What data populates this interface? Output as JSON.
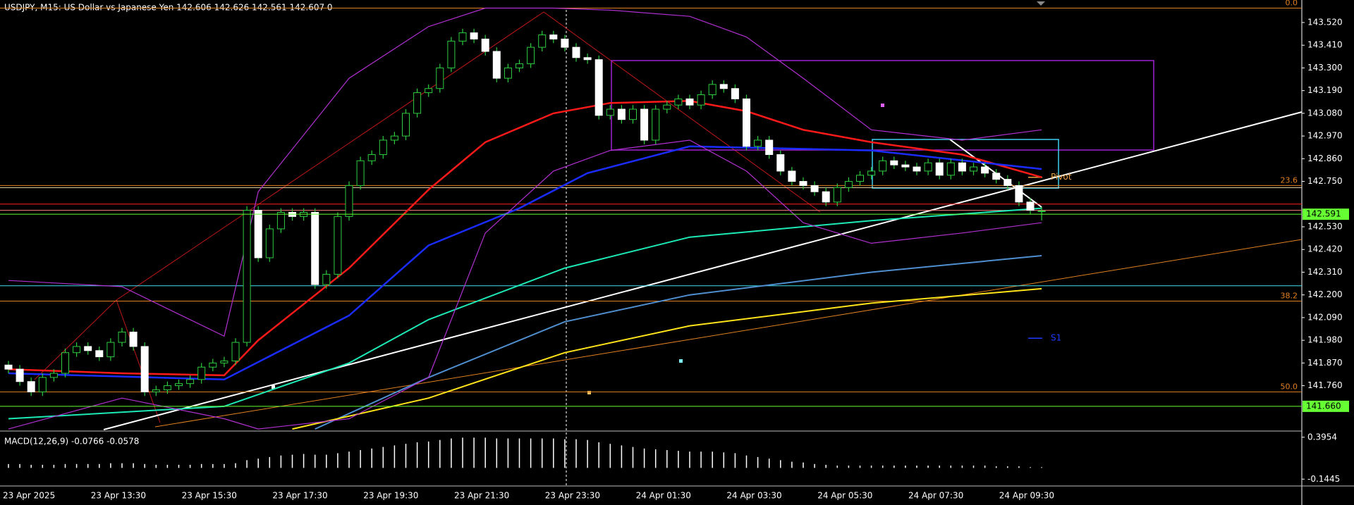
{
  "header": {
    "symbol_text": "USDJPY, M15:  US Dollar vs Japanese Yen  142.606 142.626 142.561 142.607  0"
  },
  "chart_data": [
    {
      "type": "candlestick",
      "categories": [
        "23 Apr 2025",
        null,
        null,
        null,
        null,
        null,
        null,
        null,
        "23 Apr 13:30",
        null,
        null,
        null,
        null,
        null,
        null,
        null,
        "23 Apr 15:30",
        null,
        null,
        null,
        null,
        null,
        null,
        null,
        "23 Apr 17:30",
        null,
        null,
        null,
        null,
        null,
        null,
        null,
        "23 Apr 19:30",
        null,
        null,
        null,
        null,
        null,
        null,
        null,
        "23 Apr 21:30",
        null,
        null,
        null,
        null,
        null,
        null,
        null,
        "23 Apr 23:30",
        null,
        null,
        null,
        null,
        null,
        null,
        null,
        "24 Apr 01:30",
        null,
        null,
        null,
        null,
        null,
        null,
        null,
        "24 Apr 03:30",
        null,
        null,
        null,
        null,
        null,
        null,
        null,
        "24 Apr 05:30",
        null,
        null,
        null,
        null,
        null,
        null,
        null,
        "24 Apr 07:30",
        null,
        null,
        null,
        null,
        null,
        null,
        null,
        "24 Apr 09:30",
        null,
        null,
        null
      ],
      "ohlc": [
        [
          141.86,
          141.88,
          141.82,
          141.84
        ],
        [
          141.84,
          141.86,
          141.76,
          141.78
        ],
        [
          141.78,
          141.8,
          141.71,
          141.73
        ],
        [
          141.73,
          141.82,
          141.71,
          141.8
        ],
        [
          141.8,
          141.84,
          141.78,
          141.82
        ],
        [
          141.82,
          141.94,
          141.8,
          141.92
        ],
        [
          141.92,
          141.97,
          141.9,
          141.95
        ],
        [
          141.95,
          141.97,
          141.91,
          141.93
        ],
        [
          141.93,
          141.95,
          141.88,
          141.9
        ],
        [
          141.9,
          141.99,
          141.88,
          141.97
        ],
        [
          141.97,
          142.04,
          141.95,
          142.02
        ],
        [
          142.02,
          142.04,
          141.93,
          141.95
        ],
        [
          141.95,
          141.97,
          141.71,
          141.73
        ],
        [
          141.73,
          141.76,
          141.71,
          141.74
        ],
        [
          141.74,
          141.78,
          141.72,
          141.76
        ],
        [
          141.76,
          141.79,
          141.74,
          141.77
        ],
        [
          141.77,
          141.81,
          141.75,
          141.79
        ],
        [
          141.79,
          141.87,
          141.77,
          141.85
        ],
        [
          141.85,
          141.89,
          141.83,
          141.87
        ],
        [
          141.87,
          141.9,
          141.85,
          141.88
        ],
        [
          141.88,
          141.99,
          141.86,
          141.97
        ],
        [
          141.97,
          142.63,
          141.95,
          142.61
        ],
        [
          142.61,
          142.63,
          142.36,
          142.38
        ],
        [
          142.38,
          142.54,
          142.36,
          142.52
        ],
        [
          142.52,
          142.62,
          142.5,
          142.6
        ],
        [
          142.6,
          142.62,
          142.56,
          142.58
        ],
        [
          142.58,
          142.62,
          142.56,
          142.6
        ],
        [
          142.6,
          142.62,
          142.23,
          142.25
        ],
        [
          142.25,
          142.32,
          142.23,
          142.3
        ],
        [
          142.3,
          142.6,
          142.28,
          142.58
        ],
        [
          142.58,
          142.75,
          142.56,
          142.73
        ],
        [
          142.73,
          142.87,
          142.71,
          142.85
        ],
        [
          142.85,
          142.9,
          142.83,
          142.88
        ],
        [
          142.88,
          142.97,
          142.86,
          142.95
        ],
        [
          142.95,
          142.99,
          142.93,
          142.97
        ],
        [
          142.97,
          143.1,
          142.95,
          143.08
        ],
        [
          143.08,
          143.2,
          143.06,
          143.18
        ],
        [
          143.18,
          143.22,
          143.16,
          143.2
        ],
        [
          143.2,
          143.32,
          143.18,
          143.3
        ],
        [
          143.3,
          143.45,
          143.28,
          143.43
        ],
        [
          143.43,
          143.49,
          143.41,
          143.47
        ],
        [
          143.47,
          143.49,
          143.42,
          143.44
        ],
        [
          143.44,
          143.46,
          143.36,
          143.38
        ],
        [
          143.38,
          143.4,
          143.23,
          143.25
        ],
        [
          143.25,
          143.32,
          143.23,
          143.3
        ],
        [
          143.3,
          143.34,
          143.28,
          143.32
        ],
        [
          143.32,
          143.42,
          143.3,
          143.4
        ],
        [
          143.4,
          143.48,
          143.38,
          143.46
        ],
        [
          143.46,
          143.48,
          143.42,
          143.44
        ],
        [
          143.44,
          143.46,
          143.38,
          143.4
        ],
        [
          143.4,
          143.42,
          143.33,
          143.35
        ],
        [
          143.35,
          143.37,
          143.32,
          143.34
        ],
        [
          143.34,
          143.36,
          143.05,
          143.07
        ],
        [
          143.07,
          143.12,
          143.05,
          143.1
        ],
        [
          143.1,
          143.12,
          143.03,
          143.05
        ],
        [
          143.05,
          143.12,
          143.03,
          143.1
        ],
        [
          143.1,
          143.12,
          142.93,
          142.95
        ],
        [
          142.95,
          143.12,
          142.93,
          143.1
        ],
        [
          143.1,
          143.14,
          143.08,
          143.12
        ],
        [
          143.12,
          143.17,
          143.1,
          143.15
        ],
        [
          143.15,
          143.17,
          143.1,
          143.12
        ],
        [
          143.12,
          143.19,
          143.1,
          143.17
        ],
        [
          143.17,
          143.24,
          143.15,
          143.22
        ],
        [
          143.22,
          143.24,
          143.18,
          143.2
        ],
        [
          143.2,
          143.22,
          143.13,
          143.15
        ],
        [
          143.15,
          143.17,
          142.9,
          142.92
        ],
        [
          142.92,
          142.97,
          142.9,
          142.95
        ],
        [
          142.95,
          142.97,
          142.86,
          142.88
        ],
        [
          142.88,
          142.9,
          142.78,
          142.8
        ],
        [
          142.8,
          142.82,
          142.73,
          142.75
        ],
        [
          142.75,
          142.77,
          142.71,
          142.73
        ],
        [
          142.73,
          142.75,
          142.68,
          142.7
        ],
        [
          142.7,
          142.72,
          142.63,
          142.65
        ],
        [
          142.65,
          142.74,
          142.63,
          142.72
        ],
        [
          142.72,
          142.77,
          142.7,
          142.75
        ],
        [
          142.75,
          142.8,
          142.73,
          142.78
        ],
        [
          142.78,
          142.82,
          142.76,
          142.8
        ],
        [
          142.8,
          142.87,
          142.78,
          142.85
        ],
        [
          142.85,
          142.87,
          142.81,
          142.83
        ],
        [
          142.83,
          142.85,
          142.8,
          142.82
        ],
        [
          142.82,
          142.84,
          142.78,
          142.8
        ],
        [
          142.8,
          142.86,
          142.78,
          142.84
        ],
        [
          142.84,
          142.86,
          142.76,
          142.78
        ],
        [
          142.78,
          142.86,
          142.76,
          142.84
        ],
        [
          142.84,
          142.86,
          142.78,
          142.8
        ],
        [
          142.8,
          142.84,
          142.78,
          142.82
        ],
        [
          142.82,
          142.84,
          142.77,
          142.79
        ],
        [
          142.79,
          142.81,
          142.74,
          142.76
        ],
        [
          142.76,
          142.78,
          142.71,
          142.73
        ],
        [
          142.73,
          142.75,
          142.63,
          142.65
        ],
        [
          142.65,
          142.67,
          142.59,
          142.61
        ],
        [
          142.606,
          142.626,
          142.561,
          142.607
        ]
      ],
      "ylim": [
        141.547,
        143.595
      ],
      "yticks": [
        {
          "value": 143.52,
          "label": "143.520"
        },
        {
          "value": 143.41,
          "label": "143.410"
        },
        {
          "value": 143.3,
          "label": "143.300"
        },
        {
          "value": 143.19,
          "label": "143.190"
        },
        {
          "value": 143.08,
          "label": "143.080"
        },
        {
          "value": 142.97,
          "label": "142.970"
        },
        {
          "value": 142.86,
          "label": "142.860"
        },
        {
          "value": 142.75,
          "label": "142.750"
        },
        {
          "value": 142.53,
          "label": "142.530"
        },
        {
          "value": 142.42,
          "label": "142.420"
        },
        {
          "value": 142.31,
          "label": "142.310"
        },
        {
          "value": 142.2,
          "label": "142.200"
        },
        {
          "value": 142.09,
          "label": "142.090"
        },
        {
          "value": 141.98,
          "label": "141.980"
        },
        {
          "value": 141.87,
          "label": "141.870"
        },
        {
          "value": 141.76,
          "label": "141.760"
        }
      ],
      "indicators": [
        {
          "color": "#ff1a1a",
          "x": [
            0,
            10,
            19,
            22,
            30,
            37,
            42,
            48,
            53,
            60,
            65,
            70,
            76,
            84,
            91
          ],
          "values": [
            141.84,
            141.82,
            141.81,
            141.98,
            142.33,
            142.71,
            142.94,
            143.08,
            143.13,
            143.14,
            143.09,
            143.0,
            142.94,
            142.88,
            142.77
          ]
        },
        {
          "color": "#1a2cff",
          "x": [
            0,
            19,
            30,
            37,
            45,
            51,
            60,
            76,
            91
          ],
          "values": [
            141.82,
            141.79,
            142.1,
            142.44,
            142.62,
            142.79,
            142.92,
            142.9,
            142.81
          ]
        },
        {
          "color": "#1de9b6",
          "x": [
            0,
            19,
            30,
            37,
            49,
            60,
            76,
            91
          ],
          "values": [
            141.6,
            141.66,
            141.87,
            142.08,
            142.33,
            142.48,
            142.56,
            142.62
          ]
        },
        {
          "color": "#4f8fd0",
          "x": [
            27,
            37,
            49,
            60,
            76,
            91
          ],
          "values": [
            141.55,
            141.8,
            142.07,
            142.2,
            142.31,
            142.39
          ]
        },
        {
          "color": "#ffe41a",
          "x": [
            25,
            37,
            49,
            60,
            76,
            91
          ],
          "values": [
            141.55,
            141.7,
            141.92,
            142.05,
            142.16,
            142.23
          ]
        },
        {
          "color": "#b030d0",
          "x": [
            0,
            10,
            19,
            22,
            30,
            37,
            42,
            48,
            53,
            60,
            65,
            70,
            76,
            84,
            91
          ],
          "values": [
            142.27,
            142.24,
            142.0,
            142.7,
            143.25,
            143.5,
            143.59,
            143.59,
            143.58,
            143.55,
            143.45,
            143.25,
            143.0,
            142.95,
            143.0
          ]
        },
        {
          "color": "#b030d0",
          "x": [
            0,
            10,
            19,
            22,
            30,
            37,
            42,
            48,
            53,
            60,
            65,
            70,
            76,
            84,
            91
          ],
          "values": [
            141.55,
            141.7,
            141.6,
            141.55,
            141.6,
            141.8,
            142.5,
            142.8,
            142.9,
            142.95,
            142.8,
            142.55,
            142.45,
            142.5,
            142.55
          ]
        }
      ],
      "levels": [
        {
          "value": 142.72,
          "color": "#f0d8b0"
        },
        {
          "value": 142.64,
          "color": "#ff2020"
        },
        {
          "value": 142.61,
          "color": "#ff8080"
        },
        {
          "value": 142.244,
          "color": "#40e0f0"
        }
      ],
      "fib_levels": [
        {
          "value": 143.59,
          "label": "0.0"
        },
        {
          "value": 142.73,
          "label": "23.6"
        },
        {
          "value": 142.17,
          "label": "38.2"
        },
        {
          "value": 141.73,
          "label": "50.0"
        }
      ],
      "pivot_levels": [
        {
          "value": 142.77,
          "label": "Pivot",
          "color": "#e8a040"
        },
        {
          "value": 141.99,
          "label": "S1",
          "color": "#1e3cff"
        }
      ],
      "price_labels": [
        {
          "value": 142.591,
          "label": "142.591",
          "color": "#66ff33"
        },
        {
          "value": 141.66,
          "label": "141.660",
          "color": "#66ff33"
        }
      ]
    },
    {
      "type": "bar",
      "title": "MACD(12,26,9) -0.0766 -0.0578",
      "values": [
        0.05,
        0.05,
        0.04,
        0.04,
        0.04,
        0.05,
        0.05,
        0.05,
        0.05,
        0.06,
        0.06,
        0.06,
        0.05,
        0.04,
        0.04,
        0.04,
        0.04,
        0.05,
        0.05,
        0.05,
        0.06,
        0.1,
        0.12,
        0.14,
        0.16,
        0.17,
        0.18,
        0.17,
        0.17,
        0.19,
        0.21,
        0.23,
        0.25,
        0.27,
        0.29,
        0.31,
        0.33,
        0.34,
        0.36,
        0.38,
        0.39,
        0.39,
        0.39,
        0.38,
        0.38,
        0.38,
        0.38,
        0.38,
        0.38,
        0.37,
        0.37,
        0.36,
        0.33,
        0.31,
        0.29,
        0.27,
        0.25,
        0.24,
        0.23,
        0.22,
        0.21,
        0.21,
        0.21,
        0.2,
        0.19,
        0.16,
        0.14,
        0.12,
        0.1,
        0.08,
        0.07,
        0.05,
        0.04,
        0.03,
        0.03,
        0.03,
        0.03,
        0.03,
        0.03,
        0.03,
        0.03,
        0.03,
        0.03,
        0.03,
        0.03,
        0.03,
        0.03,
        0.02,
        0.02,
        0.02,
        0.01,
        0.01
      ],
      "color": "#ffffff",
      "ylim": [
        -0.233,
        0.475
      ],
      "yticks": [
        0.3954,
        -0.1445
      ]
    }
  ]
}
